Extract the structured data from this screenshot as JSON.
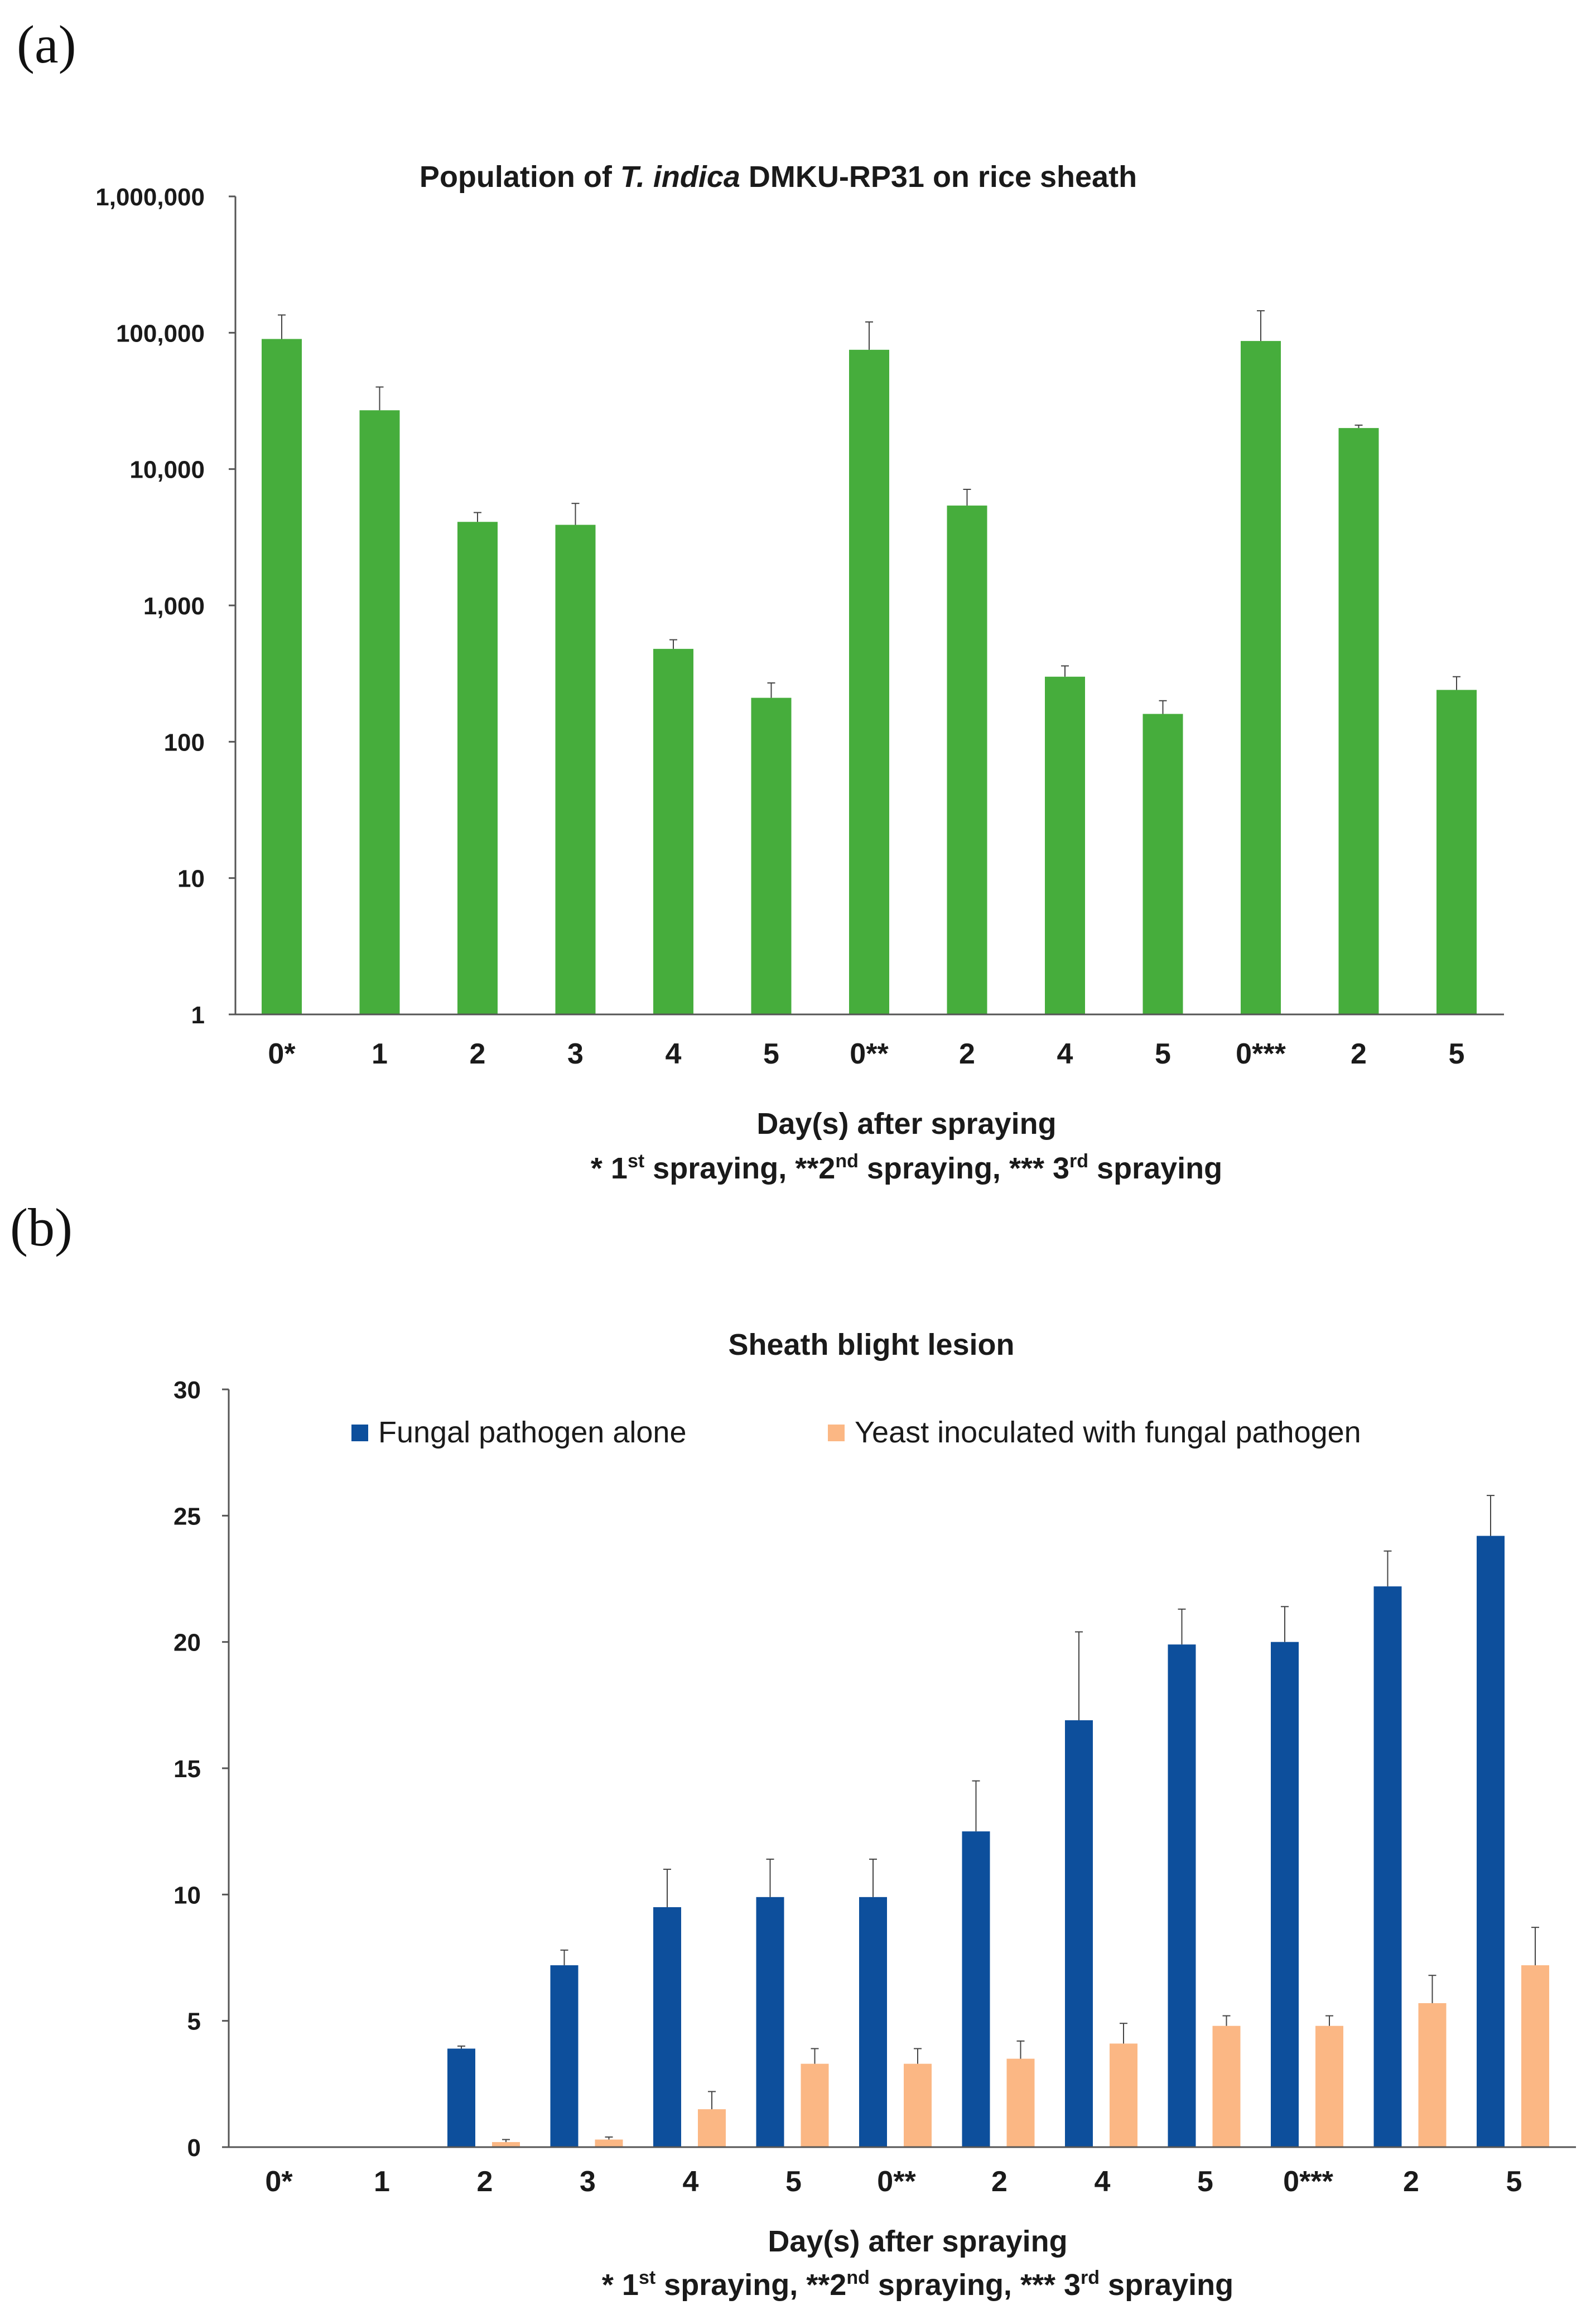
{
  "figure": {
    "panel_a_label": "(a)",
    "panel_b_label": "(b)"
  },
  "chart_data": [
    {
      "type": "bar",
      "scale": "log",
      "title_parts": [
        "Population of ",
        "T. indica",
        " DMKU-RP31 on rice sheath"
      ],
      "categories": [
        "0*",
        "1",
        "2",
        "3",
        "4",
        "5",
        "0**",
        "2",
        "4",
        "5",
        "0***",
        "2",
        "5"
      ],
      "values": [
        90000,
        27000,
        4100,
        3900,
        480,
        210,
        75000,
        5400,
        300,
        160,
        87000,
        20000,
        240
      ],
      "errors_upper": [
        135000,
        40000,
        4800,
        5600,
        560,
        270,
        120000,
        7100,
        360,
        200,
        145000,
        21000,
        300
      ],
      "ylim": [
        1,
        1000000
      ],
      "yticks": [
        1,
        10,
        100,
        1000,
        10000,
        100000,
        1000000
      ],
      "ytick_labels": [
        "1",
        "10",
        "100",
        "1,000",
        "10,000",
        "100,000",
        "1,000,000"
      ],
      "xlabel": "Day(s) after spraying",
      "footnote": {
        "p1": "* 1",
        "s1": "st",
        "p2": " spraying, **2",
        "s2": "nd",
        "p3": " spraying, *** 3",
        "s3": "rd",
        "p4": " spraying"
      },
      "color": "#46ad3c",
      "legend": "none"
    },
    {
      "type": "bar",
      "title": "Sheath blight lesion",
      "categories": [
        "0*",
        "1",
        "2",
        "3",
        "4",
        "5",
        "0**",
        "2",
        "4",
        "5",
        "0***",
        "2",
        "5"
      ],
      "series": [
        {
          "name": "Fungal pathogen alone",
          "color": "#0d4f9c",
          "values": [
            0,
            0,
            3.9,
            7.2,
            9.5,
            9.9,
            9.9,
            12.5,
            16.9,
            19.9,
            20.0,
            22.2,
            24.2
          ],
          "errors_upper": [
            0,
            0,
            4.0,
            7.8,
            11.0,
            11.4,
            11.4,
            14.5,
            20.4,
            21.3,
            21.4,
            23.6,
            25.8
          ]
        },
        {
          "name": "Yeast inoculated with fungal pathogen",
          "color": "#fbb784",
          "values": [
            0,
            0,
            0.2,
            0.3,
            1.5,
            3.3,
            3.3,
            3.5,
            4.1,
            4.8,
            4.8,
            5.7,
            7.2
          ],
          "errors_upper": [
            0,
            0,
            0.3,
            0.4,
            2.2,
            3.9,
            3.9,
            4.2,
            4.9,
            5.2,
            5.2,
            6.8,
            8.7
          ]
        }
      ],
      "ylim": [
        0,
        30
      ],
      "yticks": [
        0,
        5,
        10,
        15,
        20,
        25,
        30
      ],
      "ytick_labels": [
        "0",
        "5",
        "10",
        "15",
        "20",
        "25",
        "30"
      ],
      "xlabel": "Day(s) after spraying",
      "footnote": {
        "p1": "* 1",
        "s1": "st",
        "p2": " spraying, **2",
        "s2": "nd",
        "p3": " spraying, *** 3",
        "s3": "rd",
        "p4": " spraying"
      },
      "legend": "top"
    }
  ]
}
